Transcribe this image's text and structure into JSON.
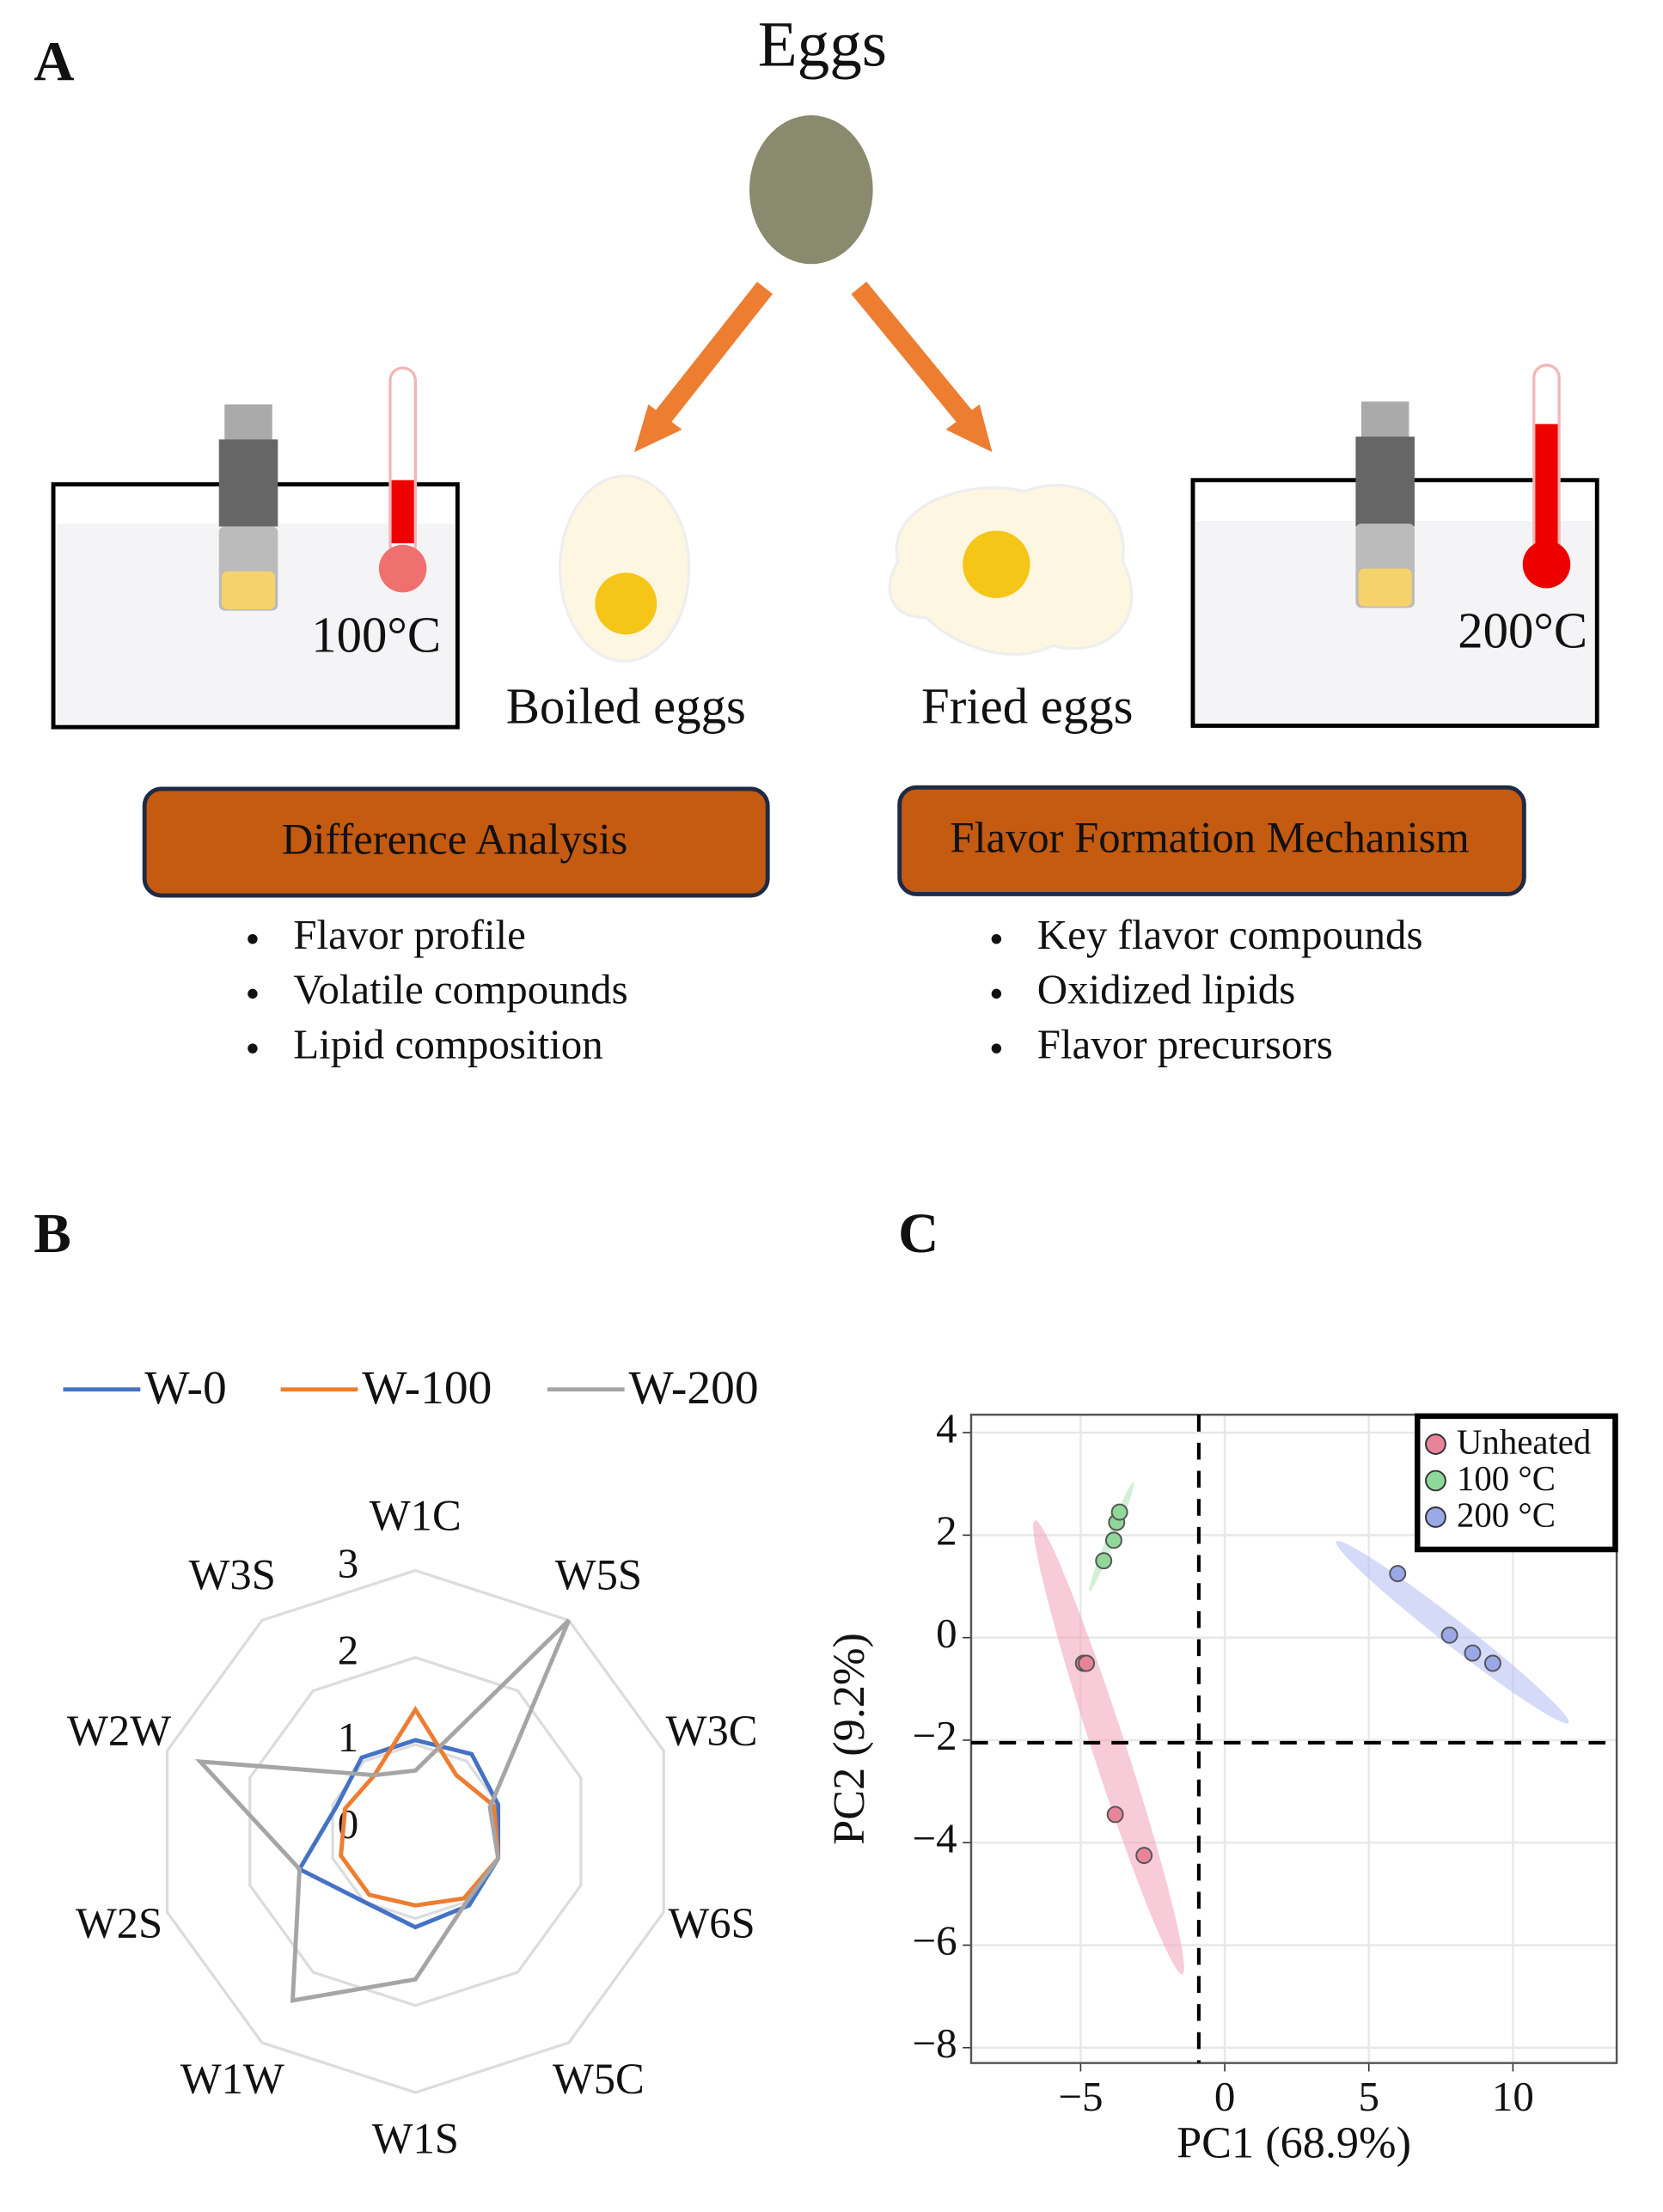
{
  "panel_a": {
    "label": "A",
    "title": "Eggs",
    "left_temp": "100°C",
    "right_temp": "200°C",
    "boiled": "Boiled eggs",
    "fried": "Fried eggs",
    "left_box": "Difference Analysis",
    "right_box": "Flavor Formation Mechanism",
    "left_items": [
      "Flavor profile",
      "Volatile compounds",
      "Lipid composition"
    ],
    "right_items": [
      "Key flavor compounds",
      "Oxidized lipids",
      "Flavor precursors"
    ]
  },
  "panel_b_label": "B",
  "panel_c_label": "C",
  "chart_data": [
    {
      "type": "radar",
      "categories": [
        "W1C",
        "W5S",
        "W3C",
        "W6S",
        "W5C",
        "W1S",
        "W1W",
        "W2S",
        "W2W",
        "W3S"
      ],
      "series": [
        {
          "name": "W-0",
          "color": "#4472c4",
          "values": [
            1.05,
            1.1,
            1.0,
            1.0,
            1.05,
            1.1,
            1.0,
            1.4,
            0.95,
            1.05
          ]
        },
        {
          "name": "W-100",
          "color": "#ed7d31",
          "values": [
            1.4,
            0.8,
            0.95,
            1.0,
            0.95,
            0.85,
            0.9,
            0.9,
            0.85,
            0.8
          ]
        },
        {
          "name": "W-200",
          "color": "#a5a5a5",
          "values": [
            0.7,
            3.0,
            0.9,
            1.0,
            1.0,
            1.7,
            2.4,
            1.4,
            2.6,
            0.8
          ]
        }
      ],
      "ylim": [
        0,
        3
      ],
      "yticks": [
        0,
        1,
        2,
        3
      ],
      "legend": "top"
    },
    {
      "type": "scatter",
      "xlabel": "PC1 (68.9%)",
      "ylabel": "PC2 (9.2%)",
      "series": [
        {
          "name": "Unheated",
          "color": "#e8849a",
          "x": [
            -4.9,
            -4.8,
            -3.8,
            -2.8
          ],
          "values": [
            -0.5,
            -0.5,
            -3.45,
            -4.25
          ]
        },
        {
          "name": "100 °C",
          "color": "#8fd89a",
          "x": [
            -4.2,
            -3.85,
            -3.75,
            -3.65
          ],
          "values": [
            1.5,
            1.9,
            2.25,
            2.45
          ]
        },
        {
          "name": "200 °C",
          "color": "#9aa8e8",
          "x": [
            6.0,
            7.8,
            8.6,
            9.3
          ],
          "values": [
            1.25,
            0.05,
            -0.3,
            -0.5
          ]
        }
      ],
      "xlim": [
        -8.8,
        13.6
      ],
      "ylim": [
        -8.3,
        4.35
      ],
      "xticks": [
        {
          "value": -5,
          "label": "−5"
        },
        0,
        5,
        10
      ],
      "yticks": [
        {
          "value": -8,
          "label": "−8"
        },
        {
          "value": -6,
          "label": "−6"
        },
        {
          "value": -4,
          "label": "−4"
        },
        {
          "value": -2,
          "label": "−2"
        },
        0,
        2,
        4
      ],
      "grid": true,
      "legend": "top right",
      "reference_lines": {
        "x": -0.9,
        "y": -2.05
      }
    }
  ]
}
